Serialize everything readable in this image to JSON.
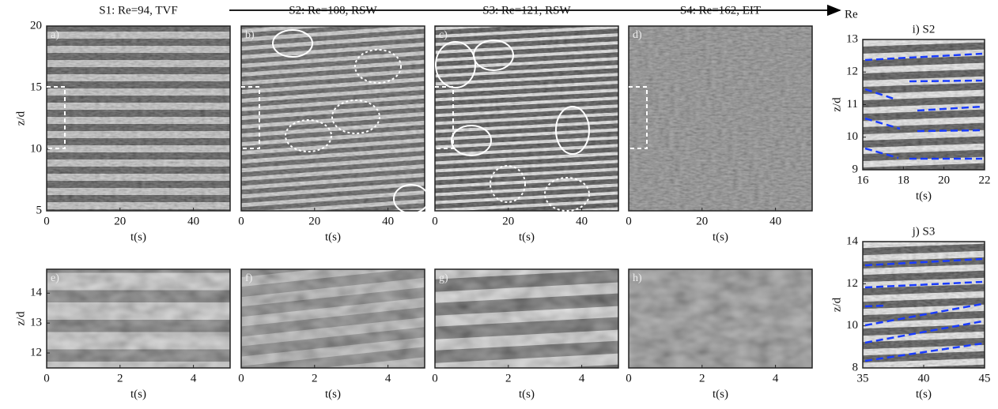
{
  "arrow_label": "Re",
  "panels": [
    {
      "title": "S1: Re=94, TVF",
      "label": "a)",
      "xlabel": "t(s)",
      "ylabel": "z/d",
      "xlim": [
        0,
        50
      ],
      "ylim": [
        5,
        20
      ],
      "xticks": [
        0,
        20,
        40
      ],
      "yticks": [
        5,
        10,
        15,
        20
      ]
    },
    {
      "title": "S2: Re=108, RSW",
      "label": "b)",
      "xlabel": "t(s)",
      "xlim": [
        0,
        50
      ],
      "ylim": [
        5,
        20
      ],
      "xticks": [
        0,
        20,
        40
      ]
    },
    {
      "title": "S3: Re=121, RSW",
      "label": "c)",
      "xlabel": "t(s)",
      "xlim": [
        0,
        50
      ],
      "ylim": [
        5,
        20
      ],
      "xticks": [
        0,
        20,
        40
      ]
    },
    {
      "title": "S4: Re=162, EIT",
      "label": "d)",
      "xlabel": "t(s)",
      "xlim": [
        0,
        50
      ],
      "ylim": [
        5,
        20
      ],
      "xticks": [
        0,
        20,
        40
      ]
    },
    {
      "label": "e)",
      "xlabel": "t(s)",
      "ylabel": "z/d",
      "xlim": [
        0,
        5
      ],
      "ylim": [
        11.5,
        14.8
      ],
      "xticks": [
        0,
        2,
        4
      ],
      "yticks": [
        12,
        13,
        14
      ]
    },
    {
      "label": "f)",
      "xlabel": "t(s)",
      "xlim": [
        0,
        5
      ],
      "ylim": [
        11.5,
        14.8
      ],
      "xticks": [
        0,
        2,
        4
      ]
    },
    {
      "label": "g)",
      "xlabel": "t(s)",
      "xlim": [
        0,
        5
      ],
      "ylim": [
        11.5,
        14.8
      ],
      "xticks": [
        0,
        2,
        4
      ]
    },
    {
      "label": "h)",
      "xlabel": "t(s)",
      "xlim": [
        0,
        5
      ],
      "ylim": [
        11.5,
        14.8
      ],
      "xticks": [
        0,
        2,
        4
      ]
    },
    {
      "title": "i) S2",
      "xlabel": "t(s)",
      "ylabel": "z/d",
      "xlim": [
        16,
        22
      ],
      "ylim": [
        9,
        13
      ],
      "xticks": [
        16,
        18,
        20,
        22
      ],
      "yticks": [
        9,
        10,
        11,
        12,
        13
      ]
    },
    {
      "title": "j) S3",
      "xlabel": "t(s)",
      "ylabel": "z/d",
      "xlim": [
        35,
        45
      ],
      "ylim": [
        8,
        14
      ],
      "xticks": [
        35,
        40,
        45
      ],
      "yticks": [
        8,
        10,
        12,
        14
      ]
    }
  ]
}
